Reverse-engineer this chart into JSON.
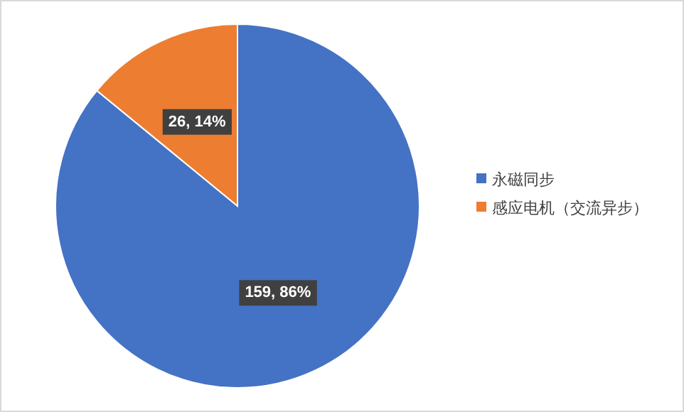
{
  "chart_data": {
    "type": "pie",
    "categories": [
      "永磁同步",
      "感应电机（交流异步）"
    ],
    "values": [
      159,
      26
    ],
    "colors": [
      "#4472c4",
      "#ed7d31"
    ],
    "value_labels": [
      "159, 86%",
      "26, 14%"
    ],
    "legend": "right"
  }
}
